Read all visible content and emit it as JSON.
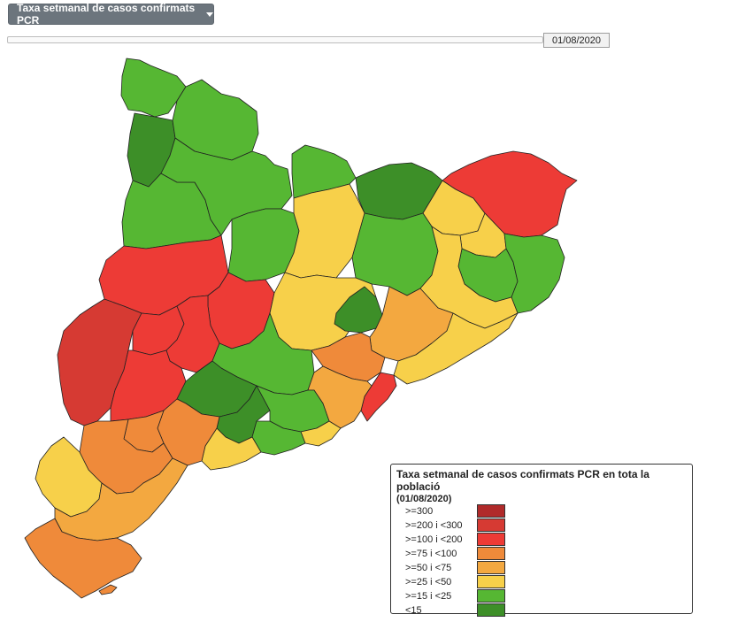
{
  "controls": {
    "layer_select_label": "Taxa setmanal de casos confirmats PCR",
    "date_value": "01/08/2020"
  },
  "legend": {
    "title": "Taxa setmanal de casos confirmats PCR en tota la població",
    "date": "(01/08/2020)",
    "items": [
      {
        "label": ">=300",
        "color": "#b02a2a"
      },
      {
        "label": ">=200 i <300",
        "color": "#d63a33"
      },
      {
        "label": ">=100 i <200",
        "color": "#ed3b36"
      },
      {
        "label": ">=75 i <100",
        "color": "#ef8a3a"
      },
      {
        "label": ">=50 i <75",
        "color": "#f3a840"
      },
      {
        "label": ">=25 i <50",
        "color": "#f7d04a"
      },
      {
        "label": ">=15 i <25",
        "color": "#56b733"
      },
      {
        "label": "<15",
        "color": "#3d8f28"
      }
    ]
  },
  "regions": [
    {
      "name": "Val d'Aran",
      "cls": 6
    },
    {
      "name": "Alta Ribagorça",
      "cls": 7
    },
    {
      "name": "Pallars Sobirà",
      "cls": 6
    },
    {
      "name": "Pallars Jussà",
      "cls": 6
    },
    {
      "name": "Alt Urgell",
      "cls": 6
    },
    {
      "name": "Cerdanya",
      "cls": 6
    },
    {
      "name": "Ripollès",
      "cls": 7
    },
    {
      "name": "Solsonès",
      "cls": 6
    },
    {
      "name": "Berguedà",
      "cls": 5
    },
    {
      "name": "Garrotxa",
      "cls": 5
    },
    {
      "name": "Alt Empordà",
      "cls": 2
    },
    {
      "name": "Pla de l'Estany",
      "cls": 5
    },
    {
      "name": "Gironès",
      "cls": 6
    },
    {
      "name": "Baix Empordà",
      "cls": 6
    },
    {
      "name": "Osona",
      "cls": 6
    },
    {
      "name": "Selva",
      "cls": 5
    },
    {
      "name": "Noguera",
      "cls": 2
    },
    {
      "name": "Segarra",
      "cls": 2
    },
    {
      "name": "Segrià",
      "cls": 1
    },
    {
      "name": "Pla d'Urgell",
      "cls": 2
    },
    {
      "name": "Urgell",
      "cls": 2
    },
    {
      "name": "Garrigues",
      "cls": 2
    },
    {
      "name": "Bages",
      "cls": 5
    },
    {
      "name": "Moianès",
      "cls": 7
    },
    {
      "name": "Anoia",
      "cls": 6
    },
    {
      "name": "Conca de Barberà",
      "cls": 7
    },
    {
      "name": "Alt Camp",
      "cls": 7
    },
    {
      "name": "Vallès Oriental",
      "cls": 4
    },
    {
      "name": "Maresme",
      "cls": 5
    },
    {
      "name": "Vallès Occidental",
      "cls": 3
    },
    {
      "name": "Barcelonès",
      "cls": 2
    },
    {
      "name": "Baix Llobregat",
      "cls": 4
    },
    {
      "name": "Alt Penedès",
      "cls": 6
    },
    {
      "name": "Garraf",
      "cls": 5
    },
    {
      "name": "Baix Penedès",
      "cls": 6
    },
    {
      "name": "Tarragonès",
      "cls": 5
    },
    {
      "name": "Baix Camp",
      "cls": 3
    },
    {
      "name": "Priorat",
      "cls": 3
    },
    {
      "name": "Ribera d'Ebre",
      "cls": 3
    },
    {
      "name": "Terra Alta",
      "cls": 5
    },
    {
      "name": "Baix Ebre",
      "cls": 4
    },
    {
      "name": "Montsià",
      "cls": 3
    }
  ]
}
